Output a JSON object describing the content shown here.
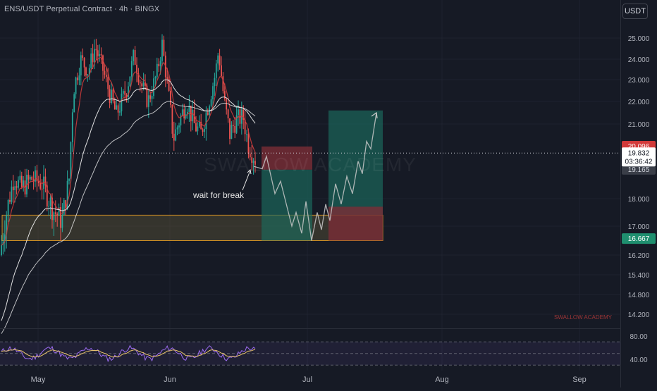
{
  "header": {
    "title": "ENS/USDT Perpetual Contract · 4h · BINGX",
    "unit_badge": "USDT"
  },
  "watermark": "SWALLOW ACADEMY",
  "corner_brand": "SWALLOW ACADEMY",
  "annotation": "wait for break",
  "price_labels": {
    "red": "20.096",
    "current": "19.832",
    "countdown": "03:36:42",
    "gray": "19.165",
    "green": "16.667"
  },
  "colors": {
    "background": "#161a25",
    "up": "#26a69a",
    "down": "#ef5350",
    "ema_fast": "#d33c3c",
    "ema_slow": "#f5f5f5",
    "zone_fill": "#5b5437",
    "zone_border": "#f6a823",
    "long_target": "#1c6b5e",
    "long_stop": "#7a2d36",
    "projection": "#c8c8c8",
    "rsi_line": "#e9c46a",
    "rsi_band": "#7e57c2"
  },
  "chart_data": {
    "type": "candlestick",
    "symbol": "ENS/USDT",
    "timeframe": "4h",
    "exchange": "BINGX",
    "x_ticks": [
      "May",
      "Jun",
      "Jul",
      "Aug",
      "Sep"
    ],
    "y_ticks": [
      25.0,
      24.0,
      23.0,
      22.0,
      21.0,
      18.0,
      17.0,
      16.2,
      15.4,
      14.8,
      14.2
    ],
    "y_ticks_text": [
      "25.000",
      "24.000",
      "23.000",
      "22.000",
      "21.000",
      "18.000",
      "17.000",
      "16.200",
      "15.400",
      "14.800",
      "14.200"
    ],
    "ylim": [
      13.8,
      25.9
    ],
    "y_scale": "log",
    "current_price": 19.832,
    "horizontal_lines": [
      19.832
    ],
    "support_zone": [
      16.6,
      17.4
    ],
    "trade_setup_1": {
      "type": "short",
      "entry": 19.165,
      "stop": 20.096,
      "target": 16.6
    },
    "trade_setup_2": {
      "type": "long",
      "entry": 17.4,
      "stop": 16.6,
      "target": 21.6
    },
    "rsi": {
      "levels_text": [
        "80.00",
        "40.00"
      ],
      "levels": [
        70,
        50,
        30
      ],
      "range": [
        20,
        80
      ]
    }
  }
}
